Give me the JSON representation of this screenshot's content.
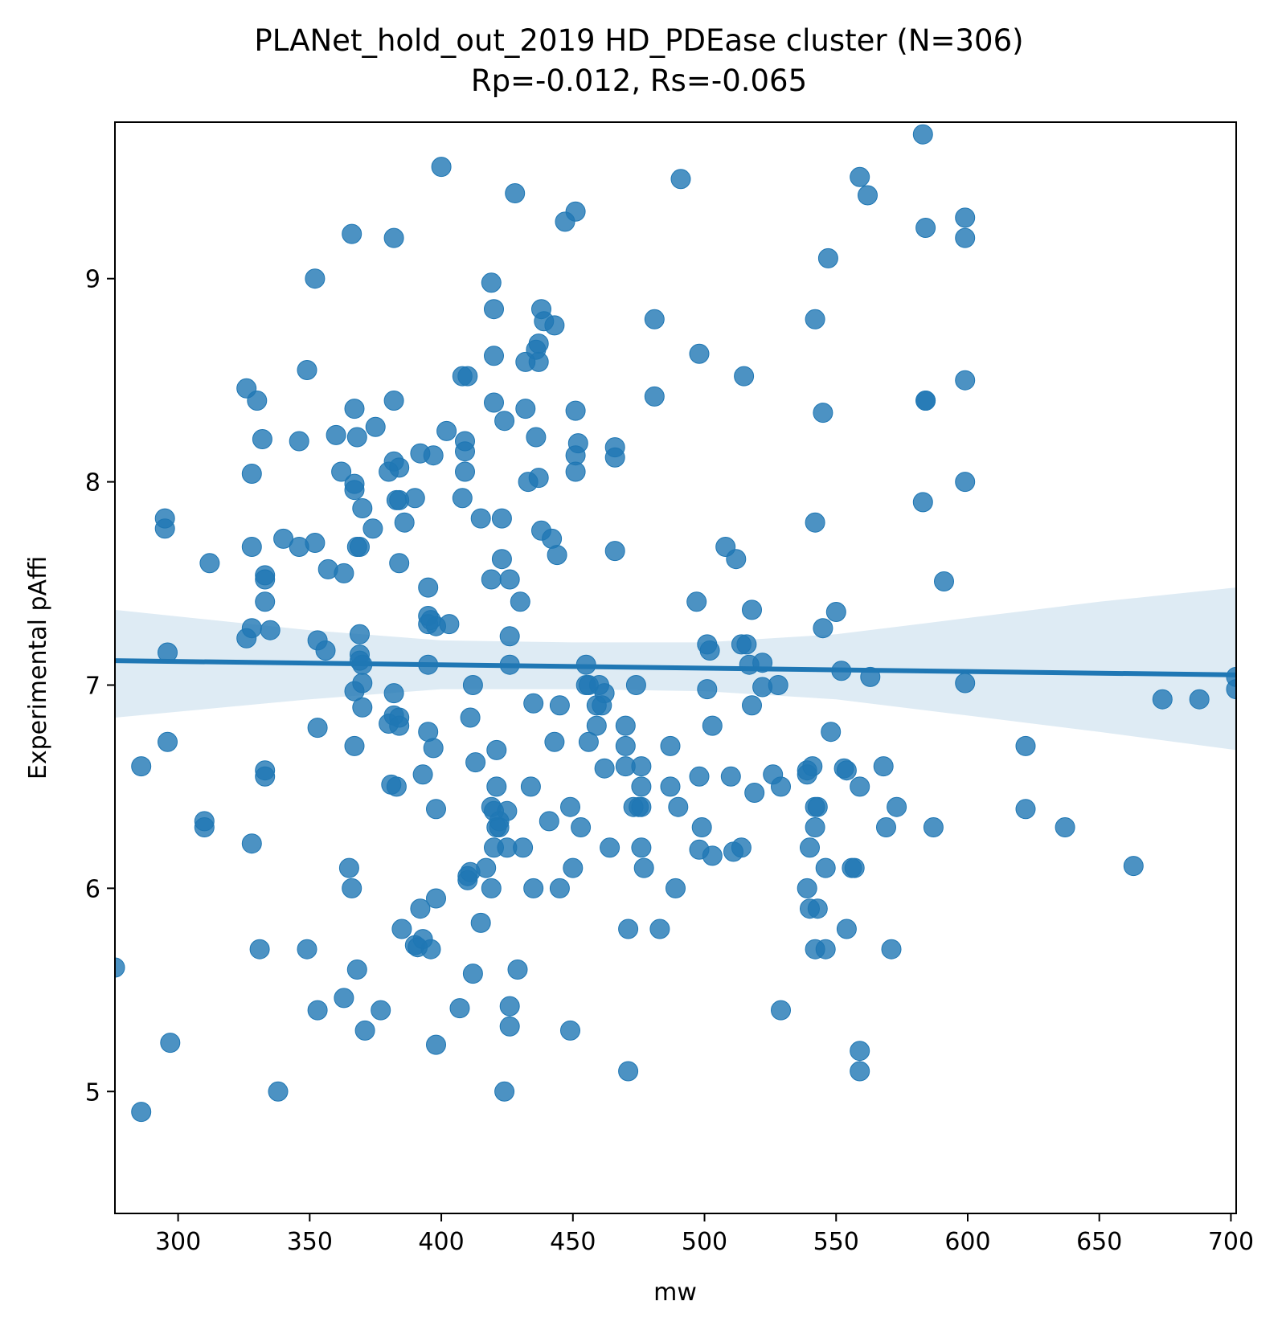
{
  "chart_data": {
    "type": "scatter",
    "title": "PLANet_hold_out_2019 HD_PDEase cluster (N=306)",
    "subtitle": "Rp=-0.012, Rs=-0.065",
    "xlabel": "mw",
    "ylabel": "Experimental pAffi",
    "xlim": [
      276,
      702
    ],
    "ylim": [
      4.4,
      9.77
    ],
    "xticks": [
      300,
      350,
      400,
      450,
      500,
      550,
      600,
      650,
      700
    ],
    "yticks": [
      5,
      6,
      7,
      8,
      9
    ],
    "grid": false,
    "color": "#1f77b4",
    "regression": {
      "x_start": 276,
      "y_start": 7.12,
      "x_end": 702,
      "y_end": 7.05,
      "ci_band": [
        {
          "x": 276,
          "lo": 6.84,
          "hi": 7.37
        },
        {
          "x": 350,
          "lo": 6.93,
          "hi": 7.27
        },
        {
          "x": 400,
          "lo": 6.98,
          "hi": 7.22
        },
        {
          "x": 450,
          "lo": 6.98,
          "hi": 7.21
        },
        {
          "x": 500,
          "lo": 6.97,
          "hi": 7.21
        },
        {
          "x": 550,
          "lo": 6.93,
          "hi": 7.25
        },
        {
          "x": 600,
          "lo": 6.85,
          "hi": 7.33
        },
        {
          "x": 650,
          "lo": 6.77,
          "hi": 7.41
        },
        {
          "x": 702,
          "lo": 6.68,
          "hi": 7.48
        }
      ]
    },
    "points": [
      [
        276,
        5.61
      ],
      [
        286,
        6.6
      ],
      [
        286,
        4.9
      ],
      [
        295,
        7.77
      ],
      [
        295,
        7.82
      ],
      [
        296,
        7.16
      ],
      [
        296,
        6.72
      ],
      [
        297,
        5.24
      ],
      [
        310,
        6.33
      ],
      [
        310,
        6.3
      ],
      [
        312,
        7.6
      ],
      [
        326,
        8.46
      ],
      [
        326,
        7.23
      ],
      [
        328,
        8.04
      ],
      [
        328,
        7.68
      ],
      [
        328,
        7.28
      ],
      [
        328,
        6.22
      ],
      [
        330,
        8.4
      ],
      [
        331,
        5.7
      ],
      [
        332,
        8.21
      ],
      [
        333,
        7.54
      ],
      [
        333,
        7.52
      ],
      [
        333,
        7.41
      ],
      [
        333,
        6.58
      ],
      [
        333,
        6.55
      ],
      [
        335,
        7.27
      ],
      [
        338,
        5.0
      ],
      [
        340,
        7.72
      ],
      [
        346,
        8.2
      ],
      [
        346,
        7.68
      ],
      [
        349,
        8.55
      ],
      [
        349,
        5.7
      ],
      [
        352,
        9.0
      ],
      [
        352,
        7.7
      ],
      [
        353,
        7.22
      ],
      [
        353,
        6.79
      ],
      [
        353,
        5.4
      ],
      [
        356,
        7.17
      ],
      [
        357,
        7.57
      ],
      [
        360,
        8.23
      ],
      [
        362,
        8.05
      ],
      [
        363,
        7.55
      ],
      [
        363,
        5.46
      ],
      [
        365,
        6.1
      ],
      [
        366,
        9.22
      ],
      [
        366,
        6.0
      ],
      [
        367,
        8.36
      ],
      [
        367,
        7.99
      ],
      [
        367,
        7.96
      ],
      [
        367,
        6.97
      ],
      [
        367,
        6.7
      ],
      [
        368,
        8.22
      ],
      [
        368,
        7.68
      ],
      [
        368,
        5.6
      ],
      [
        369,
        7.68
      ],
      [
        369,
        7.25
      ],
      [
        369,
        7.15
      ],
      [
        369,
        7.12
      ],
      [
        370,
        7.87
      ],
      [
        370,
        7.1
      ],
      [
        370,
        7.01
      ],
      [
        370,
        6.89
      ],
      [
        371,
        5.3
      ],
      [
        374,
        7.77
      ],
      [
        375,
        8.27
      ],
      [
        377,
        5.4
      ],
      [
        380,
        8.05
      ],
      [
        380,
        6.81
      ],
      [
        381,
        6.51
      ],
      [
        382,
        9.2
      ],
      [
        382,
        8.4
      ],
      [
        382,
        8.1
      ],
      [
        382,
        6.96
      ],
      [
        382,
        6.85
      ],
      [
        383,
        6.5
      ],
      [
        383,
        7.91
      ],
      [
        384,
        7.91
      ],
      [
        384,
        7.6
      ],
      [
        384,
        8.07
      ],
      [
        384,
        6.84
      ],
      [
        384,
        6.8
      ],
      [
        385,
        5.8
      ],
      [
        386,
        7.8
      ],
      [
        390,
        7.92
      ],
      [
        390,
        5.72
      ],
      [
        391,
        5.71
      ],
      [
        392,
        8.14
      ],
      [
        392,
        5.9
      ],
      [
        393,
        6.56
      ],
      [
        393,
        5.75
      ],
      [
        395,
        7.48
      ],
      [
        395,
        7.34
      ],
      [
        395,
        7.3
      ],
      [
        395,
        7.1
      ],
      [
        395,
        6.77
      ],
      [
        396,
        7.32
      ],
      [
        396,
        5.7
      ],
      [
        397,
        8.13
      ],
      [
        397,
        6.69
      ],
      [
        398,
        7.29
      ],
      [
        398,
        6.39
      ],
      [
        398,
        5.95
      ],
      [
        398,
        5.23
      ],
      [
        400,
        9.55
      ],
      [
        402,
        8.25
      ],
      [
        403,
        7.3
      ],
      [
        407,
        5.41
      ],
      [
        408,
        8.52
      ],
      [
        408,
        7.92
      ],
      [
        409,
        8.2
      ],
      [
        409,
        8.15
      ],
      [
        409,
        8.05
      ],
      [
        410,
        8.52
      ],
      [
        410,
        6.06
      ],
      [
        410,
        6.04
      ],
      [
        411,
        6.08
      ],
      [
        411,
        6.84
      ],
      [
        412,
        7.0
      ],
      [
        412,
        5.58
      ],
      [
        413,
        6.62
      ],
      [
        415,
        7.82
      ],
      [
        415,
        5.83
      ],
      [
        417,
        6.1
      ],
      [
        419,
        8.98
      ],
      [
        419,
        7.52
      ],
      [
        419,
        6.4
      ],
      [
        419,
        6.0
      ],
      [
        420,
        8.85
      ],
      [
        420,
        8.62
      ],
      [
        420,
        8.39
      ],
      [
        420,
        6.2
      ],
      [
        420,
        6.38
      ],
      [
        421,
        6.3
      ],
      [
        421,
        6.68
      ],
      [
        421,
        6.5
      ],
      [
        422,
        6.33
      ],
      [
        422,
        6.3
      ],
      [
        423,
        7.82
      ],
      [
        423,
        7.62
      ],
      [
        424,
        8.3
      ],
      [
        424,
        5.0
      ],
      [
        425,
        6.38
      ],
      [
        425,
        6.2
      ],
      [
        426,
        7.52
      ],
      [
        426,
        7.24
      ],
      [
        426,
        7.1
      ],
      [
        426,
        5.42
      ],
      [
        426,
        5.32
      ],
      [
        428,
        9.42
      ],
      [
        429,
        5.6
      ],
      [
        430,
        7.41
      ],
      [
        431,
        6.2
      ],
      [
        432,
        8.36
      ],
      [
        432,
        8.59
      ],
      [
        433,
        8.0
      ],
      [
        434,
        6.5
      ],
      [
        435,
        6.91
      ],
      [
        435,
        6.0
      ],
      [
        436,
        8.65
      ],
      [
        436,
        8.22
      ],
      [
        437,
        8.68
      ],
      [
        437,
        8.59
      ],
      [
        437,
        8.02
      ],
      [
        438,
        8.85
      ],
      [
        438,
        7.76
      ],
      [
        439,
        8.79
      ],
      [
        441,
        6.33
      ],
      [
        442,
        7.72
      ],
      [
        443,
        8.77
      ],
      [
        443,
        6.72
      ],
      [
        444,
        7.64
      ],
      [
        445,
        6.9
      ],
      [
        445,
        6.0
      ],
      [
        447,
        9.28
      ],
      [
        449,
        6.4
      ],
      [
        449,
        5.3
      ],
      [
        450,
        6.1
      ],
      [
        451,
        9.33
      ],
      [
        451,
        8.35
      ],
      [
        451,
        8.13
      ],
      [
        451,
        8.05
      ],
      [
        452,
        8.19
      ],
      [
        453,
        6.3
      ],
      [
        455,
        7.1
      ],
      [
        455,
        7.0
      ],
      [
        456,
        7.0
      ],
      [
        456,
        6.72
      ],
      [
        459,
        6.9
      ],
      [
        459,
        6.8
      ],
      [
        460,
        7.0
      ],
      [
        461,
        6.9
      ],
      [
        462,
        6.96
      ],
      [
        462,
        6.59
      ],
      [
        464,
        6.2
      ],
      [
        466,
        8.17
      ],
      [
        466,
        8.12
      ],
      [
        466,
        7.66
      ],
      [
        470,
        6.8
      ],
      [
        470,
        6.7
      ],
      [
        470,
        6.6
      ],
      [
        471,
        5.8
      ],
      [
        471,
        5.1
      ],
      [
        473,
        6.4
      ],
      [
        474,
        7.0
      ],
      [
        475,
        6.4
      ],
      [
        476,
        6.4
      ],
      [
        476,
        6.6
      ],
      [
        476,
        6.5
      ],
      [
        476,
        6.2
      ],
      [
        477,
        6.1
      ],
      [
        481,
        8.8
      ],
      [
        481,
        8.42
      ],
      [
        483,
        5.8
      ],
      [
        487,
        6.7
      ],
      [
        487,
        6.5
      ],
      [
        489,
        6.0
      ],
      [
        490,
        6.4
      ],
      [
        491,
        9.49
      ],
      [
        497,
        7.41
      ],
      [
        498,
        8.63
      ],
      [
        498,
        6.55
      ],
      [
        498,
        6.19
      ],
      [
        499,
        6.3
      ],
      [
        501,
        7.2
      ],
      [
        501,
        6.98
      ],
      [
        502,
        7.17
      ],
      [
        503,
        6.8
      ],
      [
        503,
        6.16
      ],
      [
        508,
        7.68
      ],
      [
        510,
        6.55
      ],
      [
        511,
        6.18
      ],
      [
        512,
        7.62
      ],
      [
        514,
        7.2
      ],
      [
        514,
        6.2
      ],
      [
        515,
        8.52
      ],
      [
        516,
        7.2
      ],
      [
        517,
        7.1
      ],
      [
        518,
        6.9
      ],
      [
        518,
        7.37
      ],
      [
        519,
        6.47
      ],
      [
        522,
        7.11
      ],
      [
        522,
        6.99
      ],
      [
        526,
        6.56
      ],
      [
        528,
        7.0
      ],
      [
        529,
        5.4
      ],
      [
        529,
        6.5
      ],
      [
        539,
        6.0
      ],
      [
        539,
        6.56
      ],
      [
        539,
        6.58
      ],
      [
        540,
        6.2
      ],
      [
        540,
        5.9
      ],
      [
        541,
        6.6
      ],
      [
        542,
        7.8
      ],
      [
        542,
        6.4
      ],
      [
        542,
        5.7
      ],
      [
        542,
        8.8
      ],
      [
        542,
        6.3
      ],
      [
        543,
        6.4
      ],
      [
        543,
        5.9
      ],
      [
        545,
        8.34
      ],
      [
        545,
        7.28
      ],
      [
        546,
        6.1
      ],
      [
        546,
        5.7
      ],
      [
        547,
        9.1
      ],
      [
        548,
        6.77
      ],
      [
        550,
        7.36
      ],
      [
        552,
        7.07
      ],
      [
        553,
        6.59
      ],
      [
        554,
        6.58
      ],
      [
        554,
        5.8
      ],
      [
        556,
        6.1
      ],
      [
        557,
        6.1
      ],
      [
        559,
        9.5
      ],
      [
        559,
        6.5
      ],
      [
        559,
        5.2
      ],
      [
        559,
        5.1
      ],
      [
        562,
        9.41
      ],
      [
        563,
        7.04
      ],
      [
        568,
        6.6
      ],
      [
        569,
        6.3
      ],
      [
        571,
        5.7
      ],
      [
        573,
        6.4
      ],
      [
        583,
        9.71
      ],
      [
        583,
        7.9
      ],
      [
        584,
        9.25
      ],
      [
        584,
        8.4
      ],
      [
        584,
        8.4
      ],
      [
        587,
        6.3
      ],
      [
        591,
        7.51
      ],
      [
        599,
        9.3
      ],
      [
        599,
        9.2
      ],
      [
        599,
        8.5
      ],
      [
        599,
        8.0
      ],
      [
        599,
        7.01
      ],
      [
        622,
        6.7
      ],
      [
        622,
        6.39
      ],
      [
        637,
        6.3
      ],
      [
        663,
        6.11
      ],
      [
        674,
        6.93
      ],
      [
        688,
        6.93
      ],
      [
        702,
        7.04
      ],
      [
        702,
        6.98
      ]
    ]
  }
}
